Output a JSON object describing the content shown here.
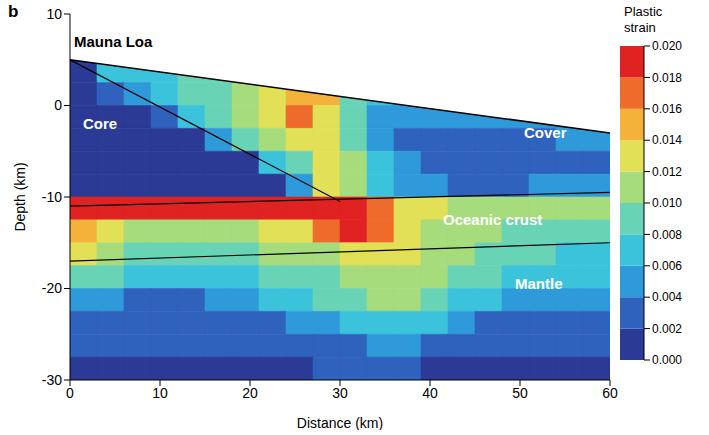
{
  "chart_data": {
    "type": "heatmap",
    "panel": "b",
    "xlabel": "Distance (km)",
    "ylabel": "Depth (km)",
    "xlim": [
      0,
      60
    ],
    "xticks": [
      0,
      10,
      20,
      30,
      40,
      50,
      60
    ],
    "ylim": [
      -30,
      10
    ],
    "yticks": [
      -30,
      -20,
      -10,
      0,
      10
    ],
    "cells": {
      "x_edges": [
        0,
        3,
        6,
        9,
        12,
        15,
        18,
        21,
        24,
        27,
        30,
        33,
        36,
        39,
        42,
        45,
        48,
        51,
        54,
        57,
        60
      ],
      "y_edges": [
        5,
        2.5,
        0,
        -2.5,
        -5,
        -7.5,
        -10,
        -12.5,
        -15,
        -17.5,
        -20,
        -22.5,
        -25,
        -27.5,
        -30
      ],
      "values": [
        [
          0.001,
          0.006,
          0.007,
          0.007,
          0.008,
          0.008,
          0.009,
          null,
          null,
          null,
          null,
          null,
          null,
          null,
          null,
          null,
          null,
          null,
          null,
          null
        ],
        [
          0.001,
          0.002,
          0.005,
          0.007,
          0.008,
          0.009,
          0.01,
          0.012,
          0.015,
          0.014,
          0.008,
          0.006,
          0.005,
          null,
          null,
          null,
          null,
          null,
          null,
          null
        ],
        [
          0.001,
          0.001,
          0.001,
          0.003,
          0.006,
          0.008,
          0.01,
          0.012,
          0.016,
          0.013,
          0.008,
          0.005,
          0.004,
          0.004,
          0.005,
          0.005,
          0.005,
          0.005,
          0.004,
          null
        ],
        [
          0.001,
          0.001,
          0.001,
          0.001,
          0.001,
          0.004,
          0.008,
          0.011,
          0.013,
          0.012,
          0.008,
          0.005,
          0.003,
          0.002,
          0.003,
          0.003,
          0.002,
          0.003,
          0.004,
          0.004
        ],
        [
          0.001,
          0.001,
          0.001,
          0.001,
          0.001,
          0.001,
          0.001,
          0.006,
          0.009,
          0.012,
          0.01,
          0.006,
          0.004,
          0.003,
          0.002,
          0.003,
          0.003,
          0.002,
          0.003,
          0.003
        ],
        [
          0.001,
          0.001,
          0.001,
          0.001,
          0.001,
          0.001,
          0.001,
          0.001,
          0.004,
          0.012,
          0.011,
          0.007,
          0.005,
          0.004,
          0.003,
          0.003,
          0.003,
          0.004,
          0.005,
          0.005
        ],
        [
          0.02,
          0.02,
          0.02,
          0.02,
          0.02,
          0.02,
          0.02,
          0.02,
          0.02,
          0.02,
          0.02,
          0.016,
          0.012,
          0.012,
          0.011,
          0.011,
          0.01,
          0.01,
          0.01,
          0.01
        ],
        [
          0.014,
          0.012,
          0.01,
          0.01,
          0.011,
          0.011,
          0.011,
          0.012,
          0.013,
          0.016,
          0.02,
          0.016,
          0.012,
          0.011,
          0.01,
          0.01,
          0.009,
          0.009,
          0.008,
          0.008
        ],
        [
          0.012,
          0.01,
          0.009,
          0.009,
          0.009,
          0.009,
          0.009,
          0.01,
          0.01,
          0.011,
          0.012,
          0.013,
          0.012,
          0.011,
          0.01,
          0.009,
          0.008,
          0.008,
          0.007,
          0.007
        ],
        [
          0.008,
          0.008,
          0.007,
          0.006,
          0.006,
          0.007,
          0.007,
          0.008,
          0.008,
          0.009,
          0.01,
          0.011,
          0.011,
          0.01,
          0.009,
          0.008,
          0.007,
          0.006,
          0.006,
          0.006
        ],
        [
          0.005,
          0.004,
          0.003,
          0.003,
          0.003,
          0.004,
          0.005,
          0.006,
          0.007,
          0.008,
          0.009,
          0.01,
          0.01,
          0.009,
          0.007,
          0.006,
          0.005,
          0.004,
          0.004,
          0.004
        ],
        [
          0.003,
          0.002,
          0.002,
          0.002,
          0.002,
          0.002,
          0.003,
          0.003,
          0.004,
          0.005,
          0.006,
          0.007,
          0.007,
          0.006,
          0.005,
          0.003,
          0.003,
          0.002,
          0.002,
          0.002
        ],
        [
          0.002,
          0.002,
          0.002,
          0.002,
          0.002,
          0.002,
          0.002,
          0.002,
          0.002,
          0.003,
          0.003,
          0.004,
          0.004,
          0.003,
          0.003,
          0.002,
          0.002,
          0.002,
          0.002,
          0.002
        ],
        [
          0.001,
          0.001,
          0.001,
          0.001,
          0.001,
          0.001,
          0.001,
          0.001,
          0.001,
          0.002,
          0.002,
          0.002,
          0.002,
          0.001,
          0.001,
          0.001,
          0.001,
          0.001,
          0.001,
          0.001
        ]
      ]
    },
    "surface": {
      "x": [
        0,
        60
      ],
      "y": [
        5,
        -3
      ]
    },
    "boundaries": [
      {
        "x": [
          0,
          30
        ],
        "y": [
          5,
          -10.5
        ]
      },
      {
        "x": [
          0,
          60
        ],
        "y": [
          -11,
          -9.5
        ]
      },
      {
        "x": [
          0,
          60
        ],
        "y": [
          -17,
          -15
        ]
      }
    ],
    "annotations": [
      {
        "text": "Mauna Loa",
        "x": 0,
        "y": 7,
        "color": "#000000"
      },
      {
        "text": "Core",
        "x": 1,
        "y": -2,
        "color": "#ffffff"
      },
      {
        "text": "Cover",
        "x": 50,
        "y": -3,
        "color": "#ffffff"
      },
      {
        "text": "Oceanic crust",
        "x": 41,
        "y": -12.5,
        "color": "#ffffff"
      },
      {
        "text": "Mantle",
        "x": 49,
        "y": -19.5,
        "color": "#ffffff"
      }
    ],
    "colorbar": {
      "label": "Plastic strain",
      "range": [
        0,
        0.02
      ],
      "ticks": [
        {
          "value": 0,
          "label": "0.000"
        },
        {
          "value": 0.002,
          "label": "0.002"
        },
        {
          "value": 0.004,
          "label": "0.004"
        },
        {
          "value": 0.006,
          "label": "0.006"
        },
        {
          "value": 0.008,
          "label": "0.008"
        },
        {
          "value": 0.01,
          "label": "0.010"
        },
        {
          "value": 0.012,
          "label": "0.012"
        },
        {
          "value": 0.014,
          "label": "0.014"
        },
        {
          "value": 0.016,
          "label": "0.016"
        },
        {
          "value": 0.018,
          "label": "0.018"
        },
        {
          "value": 0.02,
          "label": "0.020"
        }
      ]
    }
  }
}
